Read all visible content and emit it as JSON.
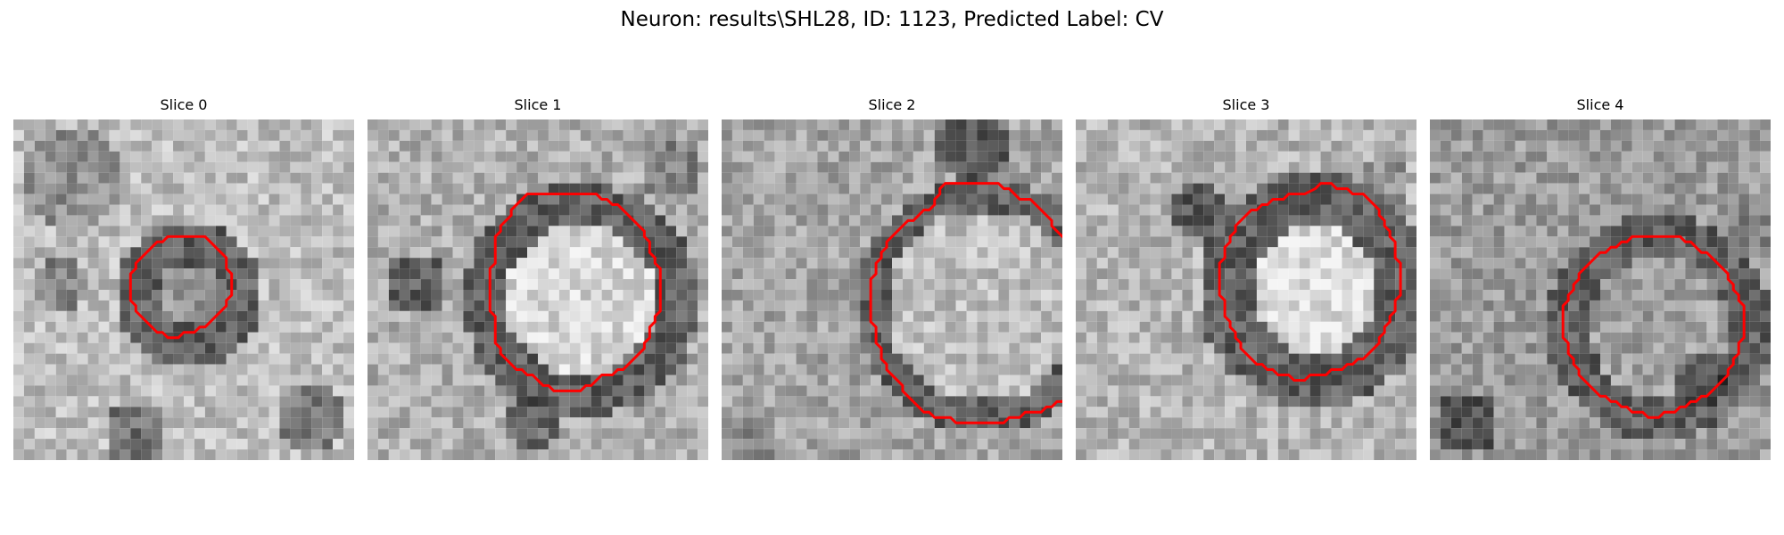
{
  "figure": {
    "title": "Neuron: results\\SHL28, ID: 1123, Predicted Label: CV"
  },
  "slices": [
    {
      "title": "Slice 0",
      "contour": [
        [
          31,
          22
        ],
        [
          36,
          22
        ],
        [
          40,
          26
        ],
        [
          40,
          28
        ],
        [
          41,
          29
        ],
        [
          41,
          33
        ],
        [
          40,
          34
        ],
        [
          40,
          35
        ],
        [
          36,
          39
        ],
        [
          35,
          39
        ],
        [
          34,
          40
        ],
        [
          32,
          40
        ],
        [
          31,
          41
        ],
        [
          29,
          41
        ],
        [
          28,
          40
        ],
        [
          27,
          40
        ],
        [
          23,
          36
        ],
        [
          23,
          35
        ],
        [
          22,
          34
        ],
        [
          22,
          29
        ],
        [
          23,
          28
        ],
        [
          23,
          27
        ],
        [
          27,
          23
        ],
        [
          28,
          23
        ],
        [
          29,
          22
        ]
      ]
    },
    {
      "title": "Slice 1",
      "contour": [
        [
          36,
          14
        ],
        [
          43,
          14
        ],
        [
          44,
          15
        ],
        [
          45,
          15
        ],
        [
          46,
          16
        ],
        [
          47,
          16
        ],
        [
          52,
          21
        ],
        [
          52,
          22
        ],
        [
          53,
          23
        ],
        [
          53,
          25
        ],
        [
          54,
          26
        ],
        [
          54,
          27
        ],
        [
          55,
          28
        ],
        [
          55,
          36
        ],
        [
          54,
          37
        ],
        [
          54,
          38
        ],
        [
          53,
          39
        ],
        [
          53,
          41
        ],
        [
          52,
          42
        ],
        [
          52,
          43
        ],
        [
          48,
          47
        ],
        [
          47,
          47
        ],
        [
          46,
          48
        ],
        [
          44,
          48
        ],
        [
          42,
          50
        ],
        [
          41,
          50
        ],
        [
          40,
          51
        ],
        [
          35,
          51
        ],
        [
          34,
          50
        ],
        [
          33,
          50
        ],
        [
          31,
          48
        ],
        [
          30,
          48
        ],
        [
          29,
          47
        ],
        [
          28,
          47
        ],
        [
          25,
          44
        ],
        [
          25,
          43
        ],
        [
          24,
          42
        ],
        [
          24,
          37
        ],
        [
          23,
          36
        ],
        [
          23,
          28
        ],
        [
          24,
          27
        ],
        [
          24,
          22
        ],
        [
          25,
          21
        ],
        [
          25,
          20
        ],
        [
          27,
          18
        ],
        [
          27,
          17
        ],
        [
          30,
          14
        ]
      ]
    },
    {
      "title": "Slice 2",
      "contour": [
        [
          42,
          12
        ],
        [
          52,
          12
        ],
        [
          53,
          13
        ],
        [
          54,
          13
        ],
        [
          56,
          15
        ],
        [
          58,
          15
        ],
        [
          62,
          19
        ],
        [
          62,
          20
        ],
        [
          66,
          24
        ],
        [
          66,
          25
        ],
        [
          67,
          26
        ],
        [
          67,
          28
        ],
        [
          68,
          29
        ],
        [
          68,
          34
        ],
        [
          69,
          35
        ],
        [
          69,
          44
        ],
        [
          68,
          45
        ],
        [
          68,
          47
        ],
        [
          67,
          48
        ],
        [
          67,
          49
        ],
        [
          66,
          50
        ],
        [
          66,
          51
        ],
        [
          64,
          53
        ],
        [
          63,
          53
        ],
        [
          62,
          54
        ],
        [
          61,
          54
        ],
        [
          60,
          55
        ],
        [
          57,
          55
        ],
        [
          56,
          56
        ],
        [
          54,
          56
        ],
        [
          53,
          57
        ],
        [
          44,
          57
        ],
        [
          43,
          56
        ],
        [
          40,
          56
        ],
        [
          39,
          55
        ],
        [
          38,
          55
        ],
        [
          34,
          51
        ],
        [
          34,
          50
        ],
        [
          31,
          47
        ],
        [
          31,
          46
        ],
        [
          30,
          45
        ],
        [
          30,
          43
        ],
        [
          29,
          42
        ],
        [
          29,
          39
        ],
        [
          28,
          38
        ],
        [
          28,
          30
        ],
        [
          29,
          29
        ],
        [
          29,
          27
        ],
        [
          30,
          26
        ],
        [
          30,
          25
        ],
        [
          31,
          24
        ],
        [
          31,
          23
        ],
        [
          35,
          19
        ],
        [
          36,
          19
        ],
        [
          38,
          17
        ],
        [
          39,
          17
        ],
        [
          40,
          16
        ],
        [
          40,
          15
        ],
        [
          41,
          14
        ],
        [
          41,
          13
        ]
      ]
    },
    {
      "title": "Slice 3",
      "contour": [
        [
          45,
          13
        ],
        [
          46,
          12
        ],
        [
          48,
          12
        ],
        [
          49,
          13
        ],
        [
          51,
          13
        ],
        [
          52,
          14
        ],
        [
          54,
          14
        ],
        [
          57,
          17
        ],
        [
          57,
          18
        ],
        [
          58,
          19
        ],
        [
          58,
          20
        ],
        [
          59,
          21
        ],
        [
          59,
          22
        ],
        [
          60,
          23
        ],
        [
          60,
          26
        ],
        [
          61,
          27
        ],
        [
          61,
          33
        ],
        [
          60,
          34
        ],
        [
          60,
          36
        ],
        [
          59,
          37
        ],
        [
          59,
          38
        ],
        [
          58,
          39
        ],
        [
          58,
          40
        ],
        [
          57,
          41
        ],
        [
          57,
          42
        ],
        [
          54,
          45
        ],
        [
          53,
          45
        ],
        [
          52,
          46
        ],
        [
          51,
          46
        ],
        [
          50,
          47
        ],
        [
          48,
          47
        ],
        [
          47,
          48
        ],
        [
          44,
          48
        ],
        [
          43,
          49
        ],
        [
          41,
          49
        ],
        [
          40,
          48
        ],
        [
          38,
          48
        ],
        [
          37,
          47
        ],
        [
          36,
          47
        ],
        [
          35,
          46
        ],
        [
          34,
          46
        ],
        [
          31,
          43
        ],
        [
          31,
          42
        ],
        [
          30,
          41
        ],
        [
          30,
          40
        ],
        [
          29,
          39
        ],
        [
          29,
          38
        ],
        [
          28,
          37
        ],
        [
          28,
          34
        ],
        [
          27,
          33
        ],
        [
          27,
          27
        ],
        [
          28,
          26
        ],
        [
          28,
          24
        ],
        [
          29,
          23
        ],
        [
          29,
          22
        ],
        [
          30,
          21
        ],
        [
          30,
          20
        ],
        [
          33,
          17
        ],
        [
          34,
          17
        ],
        [
          35,
          16
        ],
        [
          36,
          16
        ],
        [
          37,
          15
        ],
        [
          39,
          15
        ],
        [
          40,
          14
        ],
        [
          43,
          14
        ]
      ]
    },
    {
      "title": "Slice 4",
      "contour": [
        [
          40,
          22
        ],
        [
          47,
          22
        ],
        [
          48,
          23
        ],
        [
          49,
          23
        ],
        [
          51,
          25
        ],
        [
          52,
          25
        ],
        [
          56,
          29
        ],
        [
          56,
          30
        ],
        [
          57,
          31
        ],
        [
          57,
          32
        ],
        [
          58,
          33
        ],
        [
          58,
          34
        ],
        [
          59,
          35
        ],
        [
          59,
          41
        ],
        [
          58,
          42
        ],
        [
          58,
          44
        ],
        [
          57,
          45
        ],
        [
          57,
          46
        ],
        [
          56,
          47
        ],
        [
          56,
          48
        ],
        [
          52,
          52
        ],
        [
          51,
          52
        ],
        [
          50,
          53
        ],
        [
          49,
          53
        ],
        [
          48,
          54
        ],
        [
          47,
          54
        ],
        [
          46,
          55
        ],
        [
          44,
          55
        ],
        [
          43,
          56
        ],
        [
          41,
          56
        ],
        [
          40,
          55
        ],
        [
          38,
          55
        ],
        [
          37,
          54
        ],
        [
          36,
          54
        ],
        [
          35,
          53
        ],
        [
          34,
          53
        ],
        [
          33,
          52
        ],
        [
          32,
          52
        ],
        [
          28,
          48
        ],
        [
          28,
          47
        ],
        [
          27,
          46
        ],
        [
          27,
          45
        ],
        [
          26,
          44
        ],
        [
          26,
          42
        ],
        [
          25,
          41
        ],
        [
          25,
          35
        ],
        [
          26,
          34
        ],
        [
          26,
          33
        ],
        [
          27,
          32
        ],
        [
          27,
          31
        ],
        [
          28,
          30
        ],
        [
          28,
          29
        ],
        [
          32,
          25
        ],
        [
          33,
          25
        ],
        [
          34,
          24
        ],
        [
          35,
          24
        ],
        [
          36,
          23
        ],
        [
          37,
          23
        ],
        [
          38,
          22
        ]
      ]
    }
  ],
  "contour_color": "#ff0000"
}
